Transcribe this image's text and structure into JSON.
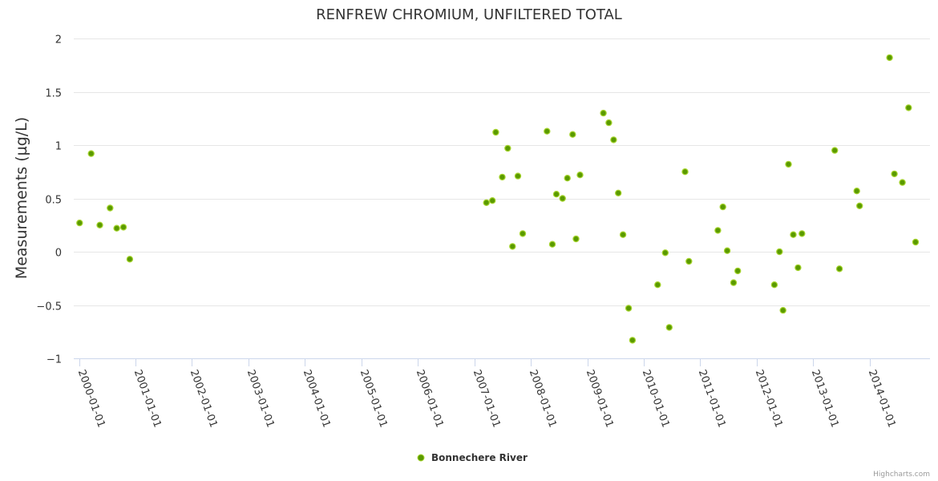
{
  "chart_data": {
    "type": "scatter",
    "title": "RENFREW CHROMIUM, UNFILTERED TOTAL",
    "ylabel": "Measurements (µg/L)",
    "xlabel": "",
    "ylim": [
      -1,
      2
    ],
    "y_ticks": [
      "2",
      "1.5",
      "1",
      "0.5",
      "0",
      "−0.5",
      "−1"
    ],
    "y_tick_values": [
      2,
      1.5,
      1,
      0.5,
      0,
      -0.5,
      -1
    ],
    "x_ticks": [
      "2000-01-01",
      "2001-01-01",
      "2002-01-01",
      "2003-01-01",
      "2004-01-01",
      "2005-01-01",
      "2006-01-01",
      "2007-01-01",
      "2008-01-01",
      "2009-01-01",
      "2010-01-01",
      "2011-01-01",
      "2012-01-01",
      "2013-01-01",
      "2014-01-01"
    ],
    "xlim": [
      "2000-01-01",
      "2014-12-31"
    ],
    "grid": true,
    "legend_position": "bottom-center",
    "series": [
      {
        "name": "Bonnechere River",
        "color": "#5a9a00",
        "points": [
          {
            "x": "2000-01-05",
            "y": 0.27
          },
          {
            "x": "2000-03-20",
            "y": 0.92
          },
          {
            "x": "2000-05-15",
            "y": 0.25
          },
          {
            "x": "2000-07-20",
            "y": 0.41
          },
          {
            "x": "2000-09-01",
            "y": 0.22
          },
          {
            "x": "2000-10-15",
            "y": 0.23
          },
          {
            "x": "2000-11-25",
            "y": -0.07
          },
          {
            "x": "2007-03-20",
            "y": 0.46
          },
          {
            "x": "2007-04-28",
            "y": 0.48
          },
          {
            "x": "2007-05-20",
            "y": 1.12
          },
          {
            "x": "2007-07-01",
            "y": 0.7
          },
          {
            "x": "2007-08-05",
            "y": 0.97
          },
          {
            "x": "2007-09-05",
            "y": 0.05
          },
          {
            "x": "2007-10-10",
            "y": 0.71
          },
          {
            "x": "2007-11-10",
            "y": 0.17
          },
          {
            "x": "2008-04-15",
            "y": 1.13
          },
          {
            "x": "2008-05-20",
            "y": 0.07
          },
          {
            "x": "2008-06-15",
            "y": 0.54
          },
          {
            "x": "2008-07-25",
            "y": 0.5
          },
          {
            "x": "2008-08-25",
            "y": 0.69
          },
          {
            "x": "2008-09-28",
            "y": 1.1
          },
          {
            "x": "2008-10-20",
            "y": 0.12
          },
          {
            "x": "2008-11-15",
            "y": 0.72
          },
          {
            "x": "2009-04-15",
            "y": 1.3
          },
          {
            "x": "2009-05-20",
            "y": 1.21
          },
          {
            "x": "2009-06-20",
            "y": 1.05
          },
          {
            "x": "2009-07-20",
            "y": 0.55
          },
          {
            "x": "2009-08-20",
            "y": 0.16
          },
          {
            "x": "2009-09-25",
            "y": -0.53
          },
          {
            "x": "2009-10-20",
            "y": -0.83
          },
          {
            "x": "2010-04-01",
            "y": -0.31
          },
          {
            "x": "2010-05-20",
            "y": -0.01
          },
          {
            "x": "2010-06-15",
            "y": -0.71
          },
          {
            "x": "2010-09-25",
            "y": 0.75
          },
          {
            "x": "2010-10-20",
            "y": -0.09
          },
          {
            "x": "2011-04-25",
            "y": 0.2
          },
          {
            "x": "2011-05-28",
            "y": 0.42
          },
          {
            "x": "2011-06-25",
            "y": 0.01
          },
          {
            "x": "2011-08-05",
            "y": -0.29
          },
          {
            "x": "2011-09-01",
            "y": -0.18
          },
          {
            "x": "2012-04-25",
            "y": -0.31
          },
          {
            "x": "2012-05-28",
            "y": 0
          },
          {
            "x": "2012-06-20",
            "y": -0.55
          },
          {
            "x": "2012-07-25",
            "y": 0.82
          },
          {
            "x": "2012-08-25",
            "y": 0.16
          },
          {
            "x": "2012-09-25",
            "y": -0.15
          },
          {
            "x": "2012-10-20",
            "y": 0.17
          },
          {
            "x": "2013-05-20",
            "y": 0.95
          },
          {
            "x": "2013-06-20",
            "y": -0.16
          },
          {
            "x": "2013-10-10",
            "y": 0.57
          },
          {
            "x": "2013-10-28",
            "y": 0.43
          },
          {
            "x": "2014-05-10",
            "y": 1.82
          },
          {
            "x": "2014-06-10",
            "y": 0.73
          },
          {
            "x": "2014-08-01",
            "y": 0.65
          },
          {
            "x": "2014-09-10",
            "y": 1.35
          },
          {
            "x": "2014-10-25",
            "y": 0.09
          }
        ]
      }
    ],
    "credits": "Highcharts.com"
  }
}
